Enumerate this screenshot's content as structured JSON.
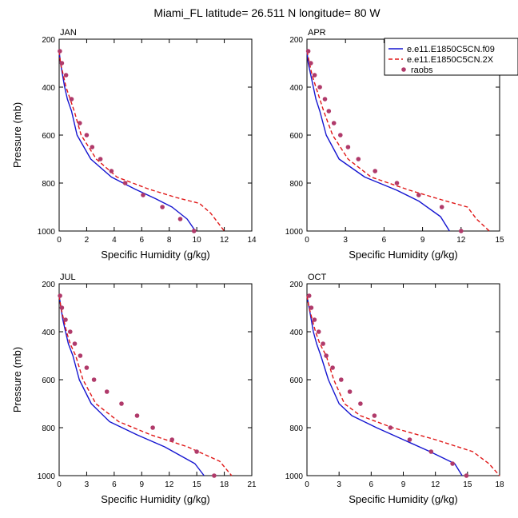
{
  "figure": {
    "title": "Miami_FL  latitude= 26.511 N longitude= 80 W"
  },
  "legend": {
    "entries": [
      {
        "label": "e.e11.E1850C5CN.f09",
        "color": "#1515d0",
        "style": "solid"
      },
      {
        "label": "e.e11.E1850C5CN.2X",
        "color": "#e01818",
        "style": "dashed"
      },
      {
        "label": "raobs",
        "color": "#b03a6a",
        "style": "marker"
      }
    ]
  },
  "chart_data": [
    {
      "type": "line",
      "panel_title": "JAN",
      "xlabel": "Specific Humidity (g/kg)",
      "ylabel": "Pressure (mb)",
      "xlim": [
        0,
        14
      ],
      "xticks": [
        0,
        2,
        4,
        6,
        8,
        10,
        12,
        14
      ],
      "ylim": [
        1000,
        200
      ],
      "yticks": [
        200,
        400,
        600,
        800,
        1000
      ],
      "series": [
        {
          "name": "e.e11.E1850C5CN.f09",
          "x": [
            0.0,
            0.1,
            0.25,
            0.4,
            0.6,
            0.9,
            1.3,
            2.3,
            3.8,
            5.5,
            7.0,
            8.2,
            9.3,
            9.9
          ],
          "y": [
            250,
            300,
            350,
            400,
            450,
            500,
            600,
            700,
            775,
            825,
            865,
            900,
            950,
            1000
          ]
        },
        {
          "name": "e.e11.E1850C5CN.2X",
          "x": [
            0.0,
            0.1,
            0.3,
            0.5,
            0.8,
            1.1,
            1.6,
            2.7,
            4.2,
            6.5,
            8.5,
            10.2,
            11.0,
            12.0
          ],
          "y": [
            250,
            300,
            350,
            400,
            450,
            500,
            600,
            700,
            775,
            825,
            860,
            885,
            925,
            1000
          ]
        },
        {
          "name": "raobs",
          "x": [
            0.05,
            0.2,
            0.5,
            0.9,
            1.5,
            2.0,
            2.4,
            3.0,
            3.8,
            4.8,
            6.1,
            7.5,
            8.8,
            9.8
          ],
          "y": [
            250,
            300,
            350,
            450,
            550,
            600,
            650,
            700,
            750,
            800,
            850,
            900,
            950,
            1000
          ]
        }
      ]
    },
    {
      "type": "line",
      "panel_title": "APR",
      "xlabel": "Specific Humidity (g/kg)",
      "ylabel": "",
      "xlim": [
        0,
        15
      ],
      "xticks": [
        0,
        3,
        6,
        9,
        12,
        15
      ],
      "ylim": [
        1000,
        200
      ],
      "yticks": [
        200,
        400,
        600,
        800,
        1000
      ],
      "series": [
        {
          "name": "e.e11.E1850C5CN.f09",
          "x": [
            0.0,
            0.1,
            0.3,
            0.5,
            0.7,
            1.0,
            1.5,
            2.5,
            4.5,
            7.0,
            8.7,
            10.4,
            11.1
          ],
          "y": [
            250,
            300,
            350,
            400,
            450,
            500,
            600,
            700,
            775,
            830,
            875,
            940,
            1000
          ]
        },
        {
          "name": "e.e11.E1850C5CN.2X",
          "x": [
            0.0,
            0.2,
            0.4,
            0.7,
            1.0,
            1.3,
            2.0,
            3.2,
            5.0,
            8.0,
            10.5,
            12.5,
            13.2,
            14.2
          ],
          "y": [
            250,
            300,
            350,
            400,
            450,
            500,
            600,
            700,
            775,
            830,
            870,
            900,
            950,
            1000
          ]
        },
        {
          "name": "raobs",
          "x": [
            0.1,
            0.3,
            0.6,
            1.0,
            1.4,
            1.7,
            2.1,
            2.6,
            3.2,
            4.0,
            5.3,
            7.0,
            8.7,
            10.5,
            12.0
          ],
          "y": [
            250,
            300,
            350,
            400,
            450,
            500,
            550,
            600,
            650,
            700,
            750,
            800,
            850,
            900,
            1000
          ]
        }
      ]
    },
    {
      "type": "line",
      "panel_title": "JUL",
      "xlabel": "Specific Humidity (g/kg)",
      "ylabel": "Pressure (mb)",
      "xlim": [
        0,
        21
      ],
      "xticks": [
        0,
        3,
        6,
        9,
        12,
        15,
        18,
        21
      ],
      "ylim": [
        1000,
        200
      ],
      "yticks": [
        200,
        400,
        600,
        800,
        1000
      ],
      "series": [
        {
          "name": "e.e11.E1850C5CN.f09",
          "x": [
            0.0,
            0.2,
            0.4,
            0.7,
            1.0,
            1.5,
            2.2,
            3.5,
            5.5,
            8.5,
            11.5,
            14.8,
            15.8
          ],
          "y": [
            250,
            300,
            350,
            400,
            450,
            500,
            600,
            700,
            775,
            830,
            880,
            950,
            1000
          ]
        },
        {
          "name": "e.e11.E1850C5CN.2X",
          "x": [
            0.0,
            0.2,
            0.5,
            0.8,
            1.2,
            1.8,
            2.6,
            4.0,
            6.5,
            10.0,
            14.0,
            17.5,
            18.8
          ],
          "y": [
            250,
            300,
            350,
            400,
            450,
            500,
            600,
            700,
            775,
            830,
            880,
            940,
            1000
          ]
        },
        {
          "name": "raobs",
          "x": [
            0.1,
            0.3,
            0.7,
            1.2,
            1.7,
            2.3,
            3.0,
            3.8,
            5.2,
            6.8,
            8.5,
            10.2,
            12.3,
            15.0,
            16.9
          ],
          "y": [
            250,
            300,
            350,
            400,
            450,
            500,
            550,
            600,
            650,
            700,
            750,
            800,
            850,
            900,
            1000
          ]
        }
      ]
    },
    {
      "type": "line",
      "panel_title": "OCT",
      "xlabel": "Specific Humidity (g/kg)",
      "ylabel": "",
      "xlim": [
        0,
        18
      ],
      "xticks": [
        0,
        3,
        6,
        9,
        12,
        15,
        18
      ],
      "ylim": [
        1000,
        200
      ],
      "yticks": [
        200,
        400,
        600,
        800,
        1000
      ],
      "series": [
        {
          "name": "e.e11.E1850C5CN.f09",
          "x": [
            0.0,
            0.2,
            0.4,
            0.6,
            0.9,
            1.3,
            2.0,
            3.0,
            4.2,
            6.5,
            9.0,
            11.5,
            13.8,
            14.5
          ],
          "y": [
            250,
            300,
            350,
            400,
            450,
            500,
            600,
            700,
            750,
            800,
            850,
            900,
            950,
            1000
          ]
        },
        {
          "name": "e.e11.E1850C5CN.2X",
          "x": [
            0.0,
            0.2,
            0.5,
            0.8,
            1.2,
            1.8,
            2.5,
            3.5,
            5.0,
            8.0,
            12.0,
            15.5,
            17.0,
            18.0
          ],
          "y": [
            250,
            300,
            350,
            400,
            450,
            500,
            600,
            700,
            750,
            800,
            850,
            900,
            950,
            1000
          ]
        },
        {
          "name": "raobs",
          "x": [
            0.2,
            0.4,
            0.7,
            1.1,
            1.5,
            1.8,
            2.4,
            3.2,
            4.0,
            5.0,
            6.3,
            7.8,
            9.6,
            11.6,
            13.6,
            14.9
          ],
          "y": [
            250,
            300,
            350,
            400,
            450,
            500,
            550,
            600,
            650,
            700,
            750,
            800,
            850,
            900,
            950,
            1000
          ]
        }
      ]
    }
  ]
}
